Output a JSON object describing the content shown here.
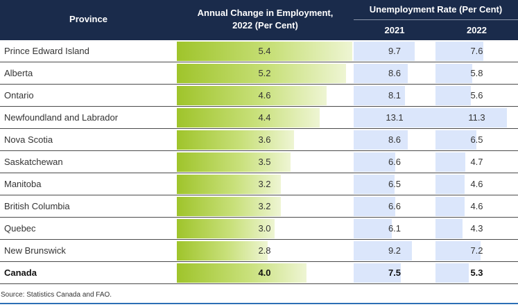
{
  "table": {
    "headers": {
      "province": "Province",
      "employment_line1": "Annual Change in Employment,",
      "employment_line2": "2022 (Per Cent)",
      "unemployment": "Unemployment Rate (Per Cent)",
      "year_2021": "2021",
      "year_2022": "2022"
    },
    "source": "Source: Statistics Canada and FAO."
  },
  "chart_data": {
    "type": "table",
    "title": "",
    "columns": [
      "Province",
      "Annual Change in Employment, 2022 (Per Cent)",
      "Unemployment Rate 2021",
      "Unemployment Rate 2022"
    ],
    "emp_max": 5.4,
    "rate_max": 13.1,
    "rows": [
      {
        "province": "Prince Edward Island",
        "employment_change": "5.4",
        "rate_2021": "9.7",
        "rate_2022": "7.6",
        "total": false
      },
      {
        "province": "Alberta",
        "employment_change": "5.2",
        "rate_2021": "8.6",
        "rate_2022": "5.8",
        "total": false
      },
      {
        "province": "Ontario",
        "employment_change": "4.6",
        "rate_2021": "8.1",
        "rate_2022": "5.6",
        "total": false
      },
      {
        "province": "Newfoundland and Labrador",
        "employment_change": "4.4",
        "rate_2021": "13.1",
        "rate_2022": "11.3",
        "total": false
      },
      {
        "province": "Nova Scotia",
        "employment_change": "3.6",
        "rate_2021": "8.6",
        "rate_2022": "6.5",
        "total": false
      },
      {
        "province": "Saskatchewan",
        "employment_change": "3.5",
        "rate_2021": "6.6",
        "rate_2022": "4.7",
        "total": false
      },
      {
        "province": "Manitoba",
        "employment_change": "3.2",
        "rate_2021": "6.5",
        "rate_2022": "4.6",
        "total": false
      },
      {
        "province": "British Columbia",
        "employment_change": "3.2",
        "rate_2021": "6.6",
        "rate_2022": "4.6",
        "total": false
      },
      {
        "province": "Quebec",
        "employment_change": "3.0",
        "rate_2021": "6.1",
        "rate_2022": "4.3",
        "total": false
      },
      {
        "province": "New Brunswick",
        "employment_change": "2.8",
        "rate_2021": "9.2",
        "rate_2022": "7.2",
        "total": false
      },
      {
        "province": "Canada",
        "employment_change": "4.0",
        "rate_2021": "7.5",
        "rate_2022": "5.3",
        "total": true
      }
    ]
  },
  "colors": {
    "header_bg": "#1a2b4b",
    "employment_bar_start": "#9fc42b",
    "employment_bar_end": "#eef5d3",
    "rate_bar": "#dbe6fb",
    "bottom_rule": "#2c6fb5"
  }
}
